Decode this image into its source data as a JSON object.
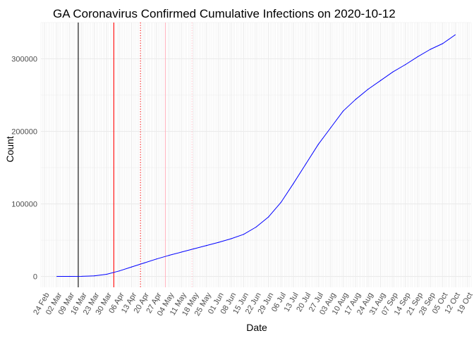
{
  "chart_data": {
    "type": "line",
    "title": "GA Coronavirus Confirmed Cumulative Infections on 2020-10-12",
    "xlabel": "Date",
    "ylabel": "Count",
    "x_axis": {
      "type": "date",
      "range": [
        "2020-02-22",
        "2020-10-21"
      ],
      "ticks": [
        {
          "date": "2020-02-24",
          "label": "24 Feb"
        },
        {
          "date": "2020-03-02",
          "label": "02 Mar"
        },
        {
          "date": "2020-03-09",
          "label": "09 Mar"
        },
        {
          "date": "2020-03-16",
          "label": "16 Mar"
        },
        {
          "date": "2020-03-23",
          "label": "23 Mar"
        },
        {
          "date": "2020-03-30",
          "label": "30 Mar"
        },
        {
          "date": "2020-04-06",
          "label": "06 Apr"
        },
        {
          "date": "2020-04-13",
          "label": "13 Apr"
        },
        {
          "date": "2020-04-20",
          "label": "20 Apr"
        },
        {
          "date": "2020-04-27",
          "label": "27 Apr"
        },
        {
          "date": "2020-05-04",
          "label": "04 May"
        },
        {
          "date": "2020-05-11",
          "label": "11 May"
        },
        {
          "date": "2020-05-18",
          "label": "18 May"
        },
        {
          "date": "2020-05-25",
          "label": "25 May"
        },
        {
          "date": "2020-06-01",
          "label": "01 Jun"
        },
        {
          "date": "2020-06-08",
          "label": "08 Jun"
        },
        {
          "date": "2020-06-15",
          "label": "15 Jun"
        },
        {
          "date": "2020-06-22",
          "label": "22 Jun"
        },
        {
          "date": "2020-06-29",
          "label": "29 Jun"
        },
        {
          "date": "2020-07-06",
          "label": "06 Jul"
        },
        {
          "date": "2020-07-13",
          "label": "13 Jul"
        },
        {
          "date": "2020-07-20",
          "label": "20 Jul"
        },
        {
          "date": "2020-07-27",
          "label": "27 Jul"
        },
        {
          "date": "2020-08-03",
          "label": "03 Aug"
        },
        {
          "date": "2020-08-10",
          "label": "10 Aug"
        },
        {
          "date": "2020-08-17",
          "label": "17 Aug"
        },
        {
          "date": "2020-08-24",
          "label": "24 Aug"
        },
        {
          "date": "2020-08-31",
          "label": "31 Aug"
        },
        {
          "date": "2020-09-07",
          "label": "07 Sep"
        },
        {
          "date": "2020-09-14",
          "label": "14 Sep"
        },
        {
          "date": "2020-09-21",
          "label": "21 Sep"
        },
        {
          "date": "2020-09-28",
          "label": "28 Sep"
        },
        {
          "date": "2020-10-05",
          "label": "05 Oct"
        },
        {
          "date": "2020-10-12",
          "label": "12 Oct"
        },
        {
          "date": "2020-10-19",
          "label": "19 Oct"
        }
      ]
    },
    "y_axis": {
      "range": [
        -15000,
        350000
      ],
      "ticks": [
        {
          "value": 0,
          "label": "0"
        },
        {
          "value": 100000,
          "label": "100000"
        },
        {
          "value": 200000,
          "label": "200000"
        },
        {
          "value": 300000,
          "label": "300000"
        }
      ]
    },
    "grid": true,
    "grid_color": "#ebebeb",
    "series": [
      {
        "color": "#0000ff",
        "points": [
          {
            "x": "2020-03-02",
            "y": 0
          },
          {
            "x": "2020-03-09",
            "y": 50
          },
          {
            "x": "2020-03-16",
            "y": 120
          },
          {
            "x": "2020-03-23",
            "y": 800
          },
          {
            "x": "2020-03-30",
            "y": 3000
          },
          {
            "x": "2020-04-06",
            "y": 7500
          },
          {
            "x": "2020-04-13",
            "y": 13000
          },
          {
            "x": "2020-04-20",
            "y": 18500
          },
          {
            "x": "2020-04-27",
            "y": 24000
          },
          {
            "x": "2020-05-04",
            "y": 29000
          },
          {
            "x": "2020-05-11",
            "y": 33500
          },
          {
            "x": "2020-05-18",
            "y": 38000
          },
          {
            "x": "2020-05-25",
            "y": 42500
          },
          {
            "x": "2020-06-01",
            "y": 47000
          },
          {
            "x": "2020-06-08",
            "y": 52000
          },
          {
            "x": "2020-06-15",
            "y": 58000
          },
          {
            "x": "2020-06-22",
            "y": 68000
          },
          {
            "x": "2020-06-29",
            "y": 82000
          },
          {
            "x": "2020-07-06",
            "y": 102000
          },
          {
            "x": "2020-07-13",
            "y": 128000
          },
          {
            "x": "2020-07-20",
            "y": 155000
          },
          {
            "x": "2020-07-27",
            "y": 182000
          },
          {
            "x": "2020-08-03",
            "y": 205000
          },
          {
            "x": "2020-08-10",
            "y": 228000
          },
          {
            "x": "2020-08-17",
            "y": 244000
          },
          {
            "x": "2020-08-24",
            "y": 258000
          },
          {
            "x": "2020-08-31",
            "y": 270000
          },
          {
            "x": "2020-09-07",
            "y": 282000
          },
          {
            "x": "2020-09-14",
            "y": 292000
          },
          {
            "x": "2020-09-21",
            "y": 303000
          },
          {
            "x": "2020-09-28",
            "y": 313000
          },
          {
            "x": "2020-10-05",
            "y": 321000
          },
          {
            "x": "2020-10-12",
            "y": 333000
          }
        ]
      }
    ],
    "reference_lines": [
      {
        "date": "2020-03-14",
        "color": "#000000",
        "style": "solid"
      },
      {
        "date": "2020-04-03",
        "color": "#ff0000",
        "style": "solid"
      },
      {
        "date": "2020-04-18",
        "color": "#ff0000",
        "style": "dotted"
      },
      {
        "date": "2020-05-02",
        "color": "#ffb6c1",
        "style": "solid"
      },
      {
        "date": "2020-05-17",
        "color": "#ffb6c1",
        "style": "dotted"
      }
    ]
  }
}
